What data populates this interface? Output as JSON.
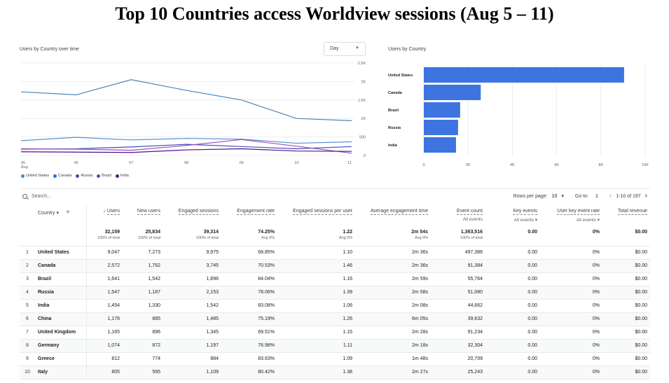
{
  "slide_title": "Top 10 Countries access Worldview sessions (Aug 5 – 11)",
  "line_card": {
    "title": "Users by Country over time",
    "granularity": "Day",
    "x_ticks": [
      "05",
      "06",
      "07",
      "08",
      "09",
      "10",
      "11"
    ],
    "x_sub": "Aug",
    "y_ticks": [
      "2.5K",
      "2K",
      "1.5K",
      "1K",
      "500",
      "0"
    ]
  },
  "bar_card": {
    "title": "Users by Country",
    "x_ticks": [
      "0",
      "2K",
      "4K",
      "6K",
      "8K",
      "10K"
    ]
  },
  "legend": [
    {
      "name": "United States",
      "color": "#4a86b8"
    },
    {
      "name": "Canada",
      "color": "#1a73e8"
    },
    {
      "name": "Russia",
      "color": "#3f51b5"
    },
    {
      "name": "Brazil",
      "color": "#7b3fa8"
    },
    {
      "name": "India",
      "color": "#5c1a8a"
    }
  ],
  "chart_data": [
    {
      "type": "line",
      "title": "Users by Country over time",
      "x": [
        "05 Aug",
        "06",
        "07",
        "08",
        "09",
        "10",
        "11"
      ],
      "ylim": [
        0,
        2500
      ],
      "grid": true,
      "legend": "bottom",
      "series": [
        {
          "name": "United States",
          "color": "#4a86b8",
          "values": [
            1720,
            1640,
            2050,
            1760,
            1500,
            1000,
            940
          ]
        },
        {
          "name": "Canada",
          "color": "#5b8fd0",
          "values": [
            400,
            490,
            420,
            460,
            440,
            330,
            370
          ]
        },
        {
          "name": "Russia",
          "color": "#3f51b5",
          "values": [
            170,
            180,
            230,
            300,
            240,
            180,
            240
          ]
        },
        {
          "name": "Brazil",
          "color": "#9c4fc0",
          "values": [
            180,
            170,
            140,
            270,
            430,
            250,
            60
          ]
        },
        {
          "name": "India",
          "color": "#4a148c",
          "values": [
            100,
            90,
            80,
            150,
            180,
            120,
            110
          ]
        }
      ]
    },
    {
      "type": "bar",
      "orientation": "horizontal",
      "title": "Users by Country",
      "categories": [
        "United States",
        "Canada",
        "Brazil",
        "Russia",
        "India"
      ],
      "values": [
        9047,
        2572,
        1641,
        1547,
        1454
      ],
      "xlim": [
        0,
        10000
      ],
      "color": "#3d74e0"
    }
  ],
  "toolbar": {
    "search_placeholder": "Search...",
    "rows_label": "Rows per page:",
    "rows_value": "10",
    "goto_label": "Go to:",
    "goto_value": "1",
    "range": "1-10 of 197"
  },
  "table": {
    "headers": {
      "country": "Country",
      "users": "Users",
      "new_users": "New users",
      "engaged_sessions": "Engaged sessions",
      "engagement_rate": "Engagement rate",
      "sessions_per_user": "Engaged sessions per user",
      "avg_time": "Average engagement time",
      "event_count": "Event count",
      "event_count_sub": "All events",
      "key_events": "Key events",
      "key_events_sub": "All events",
      "user_key_rate": "User key event rate",
      "user_key_rate_sub": "All events",
      "revenue": "Total revenue"
    },
    "totals": {
      "users": "32,159",
      "users_pct": "100% of total",
      "new_users": "25,834",
      "new_users_pct": "100% of total",
      "engaged_sessions": "39,314",
      "engaged_sessions_pct": "100% of total",
      "engagement_rate": "74.25%",
      "engagement_rate_pct": "Avg 0%",
      "sessions_per_user": "1.22",
      "sessions_per_user_pct": "Avg 0%",
      "avg_time": "2m 54s",
      "avg_time_pct": "Avg 0%",
      "event_count": "1,363,516",
      "event_count_pct": "100% of total",
      "key_events": "0.00",
      "user_key_rate": "0%",
      "revenue": "$0.00"
    },
    "rows": [
      {
        "n": "1",
        "country": "United States",
        "users": "9,047",
        "new_users": "7,273",
        "engaged": "9,975",
        "rate": "68.85%",
        "spu": "1.10",
        "time": "2m 36s",
        "events": "497,386",
        "key": "0.00",
        "ukr": "0%",
        "rev": "$0.00"
      },
      {
        "n": "2",
        "country": "Canada",
        "users": "2,572",
        "new_users": "1,762",
        "engaged": "3,745",
        "rate": "70.53%",
        "spu": "1.46",
        "time": "2m 36s",
        "events": "91,384",
        "key": "0.00",
        "ukr": "0%",
        "rev": "$0.00"
      },
      {
        "n": "3",
        "country": "Brazil",
        "users": "1,641",
        "new_users": "1,542",
        "engaged": "1,896",
        "rate": "84.04%",
        "spu": "1.16",
        "time": "2m 59s",
        "events": "55,764",
        "key": "0.00",
        "ukr": "0%",
        "rev": "$0.00"
      },
      {
        "n": "4",
        "country": "Russia",
        "users": "1,547",
        "new_users": "1,187",
        "engaged": "2,153",
        "rate": "78.06%",
        "spu": "1.39",
        "time": "2m 58s",
        "events": "51,080",
        "key": "0.00",
        "ukr": "0%",
        "rev": "$0.00"
      },
      {
        "n": "5",
        "country": "India",
        "users": "1,454",
        "new_users": "1,330",
        "engaged": "1,542",
        "rate": "83.08%",
        "spu": "1.06",
        "time": "2m 08s",
        "events": "44,662",
        "key": "0.00",
        "ukr": "0%",
        "rev": "$0.00"
      },
      {
        "n": "6",
        "country": "China",
        "users": "1,176",
        "new_users": "885",
        "engaged": "1,485",
        "rate": "75.19%",
        "spu": "1.26",
        "time": "6m 05s",
        "events": "39,632",
        "key": "0.00",
        "ukr": "0%",
        "rev": "$0.00"
      },
      {
        "n": "7",
        "country": "United Kingdom",
        "users": "1,165",
        "new_users": "896",
        "engaged": "1,345",
        "rate": "69.51%",
        "spu": "1.15",
        "time": "2m 28s",
        "events": "91,234",
        "key": "0.00",
        "ukr": "0%",
        "rev": "$0.00"
      },
      {
        "n": "8",
        "country": "Germany",
        "users": "1,074",
        "new_users": "872",
        "engaged": "1,197",
        "rate": "76.98%",
        "spu": "1.11",
        "time": "2m 18s",
        "events": "32,304",
        "key": "0.00",
        "ukr": "0%",
        "rev": "$0.00"
      },
      {
        "n": "9",
        "country": "Greece",
        "users": "812",
        "new_users": "774",
        "engaged": "884",
        "rate": "83.63%",
        "spu": "1.09",
        "time": "1m 48s",
        "events": "20,709",
        "key": "0.00",
        "ukr": "0%",
        "rev": "$0.00"
      },
      {
        "n": "10",
        "country": "Italy",
        "users": "805",
        "new_users": "595",
        "engaged": "1,109",
        "rate": "80.42%",
        "spu": "1.38",
        "time": "2m 27s",
        "events": "25,243",
        "key": "0.00",
        "ukr": "0%",
        "rev": "$0.00"
      }
    ]
  }
}
